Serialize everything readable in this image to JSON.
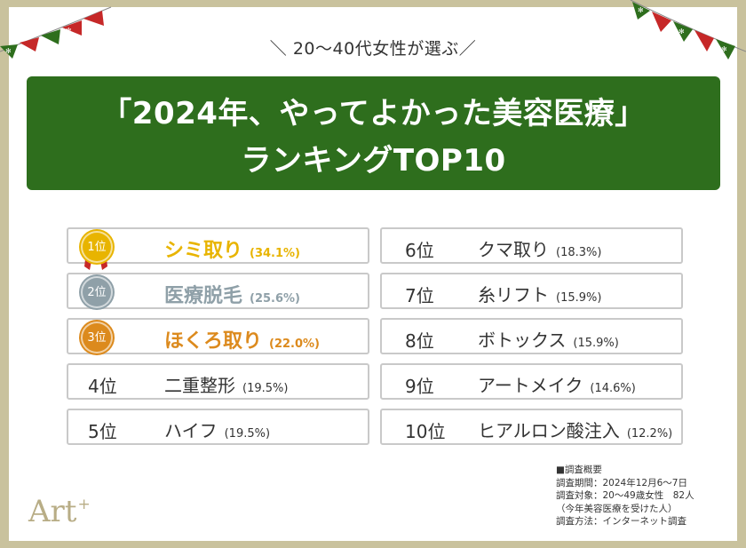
{
  "subtitle": "＼ 20〜40代女性が選ぶ／",
  "title_line1": "「2024年、やってよかった美容医療」",
  "title_line2": "ランキングTOP10",
  "colors": {
    "gold": "#e8b400",
    "silver": "#8fa0a8",
    "bronze": "#dc8a1d",
    "banner": "#2e6e1d"
  },
  "chart_data": {
    "type": "table",
    "title": "「2024年、やってよかった美容医療」ランキングTOP10",
    "unit": "%",
    "rows": [
      {
        "rank": "1位",
        "name": "シミ取り",
        "pct_label": "(34.1%)",
        "value": 34.1
      },
      {
        "rank": "2位",
        "name": "医療脱毛",
        "pct_label": "(25.6%)",
        "value": 25.6
      },
      {
        "rank": "3位",
        "name": "ほくろ取り",
        "pct_label": "(22.0%)",
        "value": 22.0
      },
      {
        "rank": "4位",
        "name": "二重整形",
        "pct_label": "(19.5%)",
        "value": 19.5
      },
      {
        "rank": "5位",
        "name": "ハイフ",
        "pct_label": "(19.5%)",
        "value": 19.5
      },
      {
        "rank": "6位",
        "name": "クマ取り",
        "pct_label": "(18.3%)",
        "value": 18.3
      },
      {
        "rank": "7位",
        "name": "糸リフト",
        "pct_label": "(15.9%)",
        "value": 15.9
      },
      {
        "rank": "8位",
        "name": "ボトックス",
        "pct_label": "(15.9%)",
        "value": 15.9
      },
      {
        "rank": "9位",
        "name": "アートメイク",
        "pct_label": "(14.6%)",
        "value": 14.6
      },
      {
        "rank": "10位",
        "name": "ヒアルロン酸注入",
        "pct_label": "(12.2%)",
        "value": 12.2
      }
    ]
  },
  "survey": {
    "heading": "■調査概要",
    "period": "調査期間：2024年12月6〜7日",
    "target": "調査対象：20〜49歳女性　82人",
    "target_note": "（今年美容医療を受けた人）",
    "method": "調査方法：インターネット調査"
  },
  "logo": {
    "text": "Art",
    "mark": "+"
  }
}
